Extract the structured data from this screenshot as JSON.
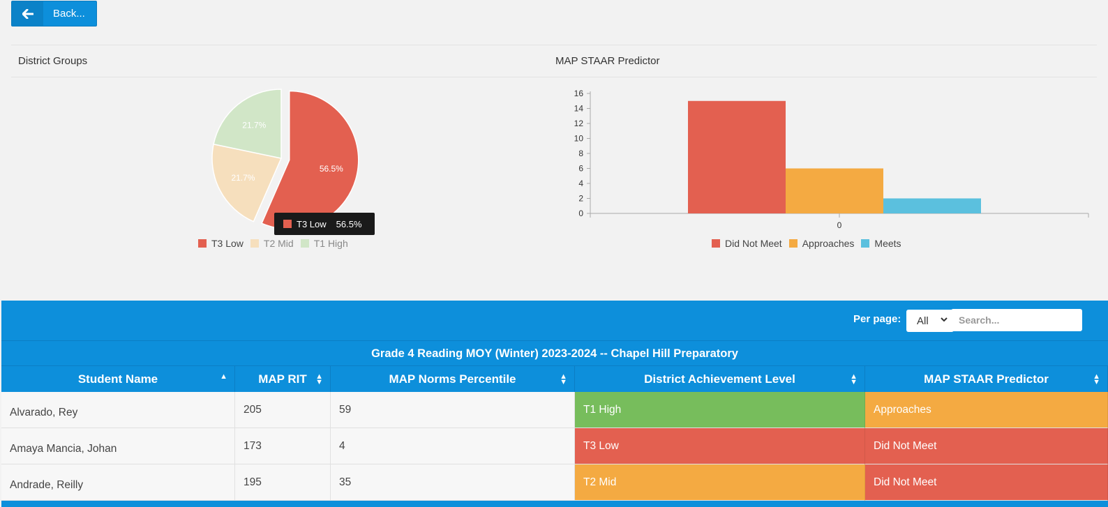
{
  "nav": {
    "back_label": "Back..."
  },
  "district_groups": {
    "title": "District Groups",
    "slices": [
      {
        "name": "T3 Low",
        "value": 56.5,
        "label": "56.5%",
        "color": "#e36050"
      },
      {
        "name": "T2 Mid",
        "value": 21.7,
        "label": "21.7%",
        "color": "#f6dfbd"
      },
      {
        "name": "T1 High",
        "value": 21.7,
        "label": "21.7%",
        "color": "#d1e6c7"
      }
    ],
    "tooltip": {
      "name": "T3 Low",
      "value": "56.5%"
    }
  },
  "staar_predictor": {
    "title": "MAP STAAR Predictor"
  },
  "chart_data": {
    "type": "bar",
    "categories": [
      "0"
    ],
    "series": [
      {
        "name": "Did Not Meet",
        "values": [
          15
        ],
        "color": "#e36050"
      },
      {
        "name": "Approaches",
        "values": [
          6
        ],
        "color": "#f4aa42"
      },
      {
        "name": "Meets",
        "values": [
          2
        ],
        "color": "#5bc0de"
      }
    ],
    "ylim": [
      0,
      16
    ],
    "yticks": [
      "0",
      "2",
      "4",
      "6",
      "8",
      "10",
      "12",
      "14",
      "16"
    ],
    "legend": "bottom"
  },
  "table": {
    "per_page_label": "Per page:",
    "per_page_value": "All",
    "search_placeholder": "Search...",
    "title": "Grade 4 Reading MOY (Winter) 2023-2024 -- Chapel Hill Preparatory",
    "columns": [
      "Student Name",
      "MAP RIT",
      "MAP Norms Percentile",
      "District Achievement Level",
      "MAP STAAR Predictor"
    ],
    "rows": [
      {
        "name": "Alvarado, Rey",
        "rit": "205",
        "percentile": "59",
        "level": "T1 High",
        "level_color": "#77bd5c",
        "predictor": "Approaches",
        "predictor_color": "#f4aa42"
      },
      {
        "name": "Amaya Mancia, Johan",
        "rit": "173",
        "percentile": "4",
        "level": "T3 Low",
        "level_color": "#e36050",
        "predictor": "Did Not Meet",
        "predictor_color": "#e36050"
      },
      {
        "name": "Andrade, Reilly",
        "rit": "195",
        "percentile": "35",
        "level": "T2 Mid",
        "level_color": "#f4aa42",
        "predictor": "Did Not Meet",
        "predictor_color": "#e36050"
      }
    ]
  }
}
